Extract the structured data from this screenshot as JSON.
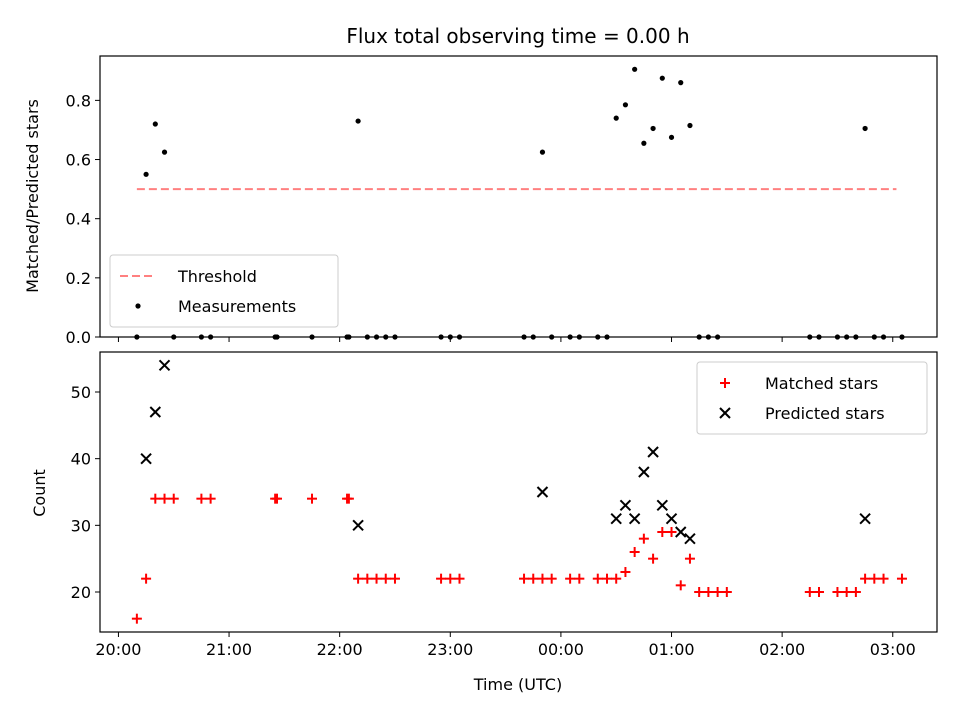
{
  "chart_data": [
    {
      "type": "scatter",
      "title": "Flux total observing time = 0.00 h",
      "ylabel": "Matched/Predicted stars",
      "xlabel": "",
      "ylim": [
        0,
        0.95
      ],
      "xlim": [
        "19:50",
        "03:24"
      ],
      "xticks": [
        "20:00",
        "21:00",
        "22:00",
        "23:00",
        "00:00",
        "01:00",
        "02:00",
        "03:00"
      ],
      "yticks": [
        "0.0",
        "0.2",
        "0.4",
        "0.6",
        "0.8"
      ],
      "legend": {
        "placement": "lower-left",
        "entries": [
          {
            "label": "Threshold",
            "color": "#ff8080",
            "marker": "dashed-line"
          },
          {
            "label": "Measurements",
            "color": "#000000",
            "marker": "dot"
          }
        ]
      },
      "threshold": {
        "value": 0.5,
        "x_start": "20:10",
        "x_end": "03:02"
      },
      "series": [
        {
          "name": "Measurements",
          "points": [
            [
              "20:10",
              0
            ],
            [
              "20:15",
              0.55
            ],
            [
              "20:20",
              0.72
            ],
            [
              "20:25",
              0.625
            ],
            [
              "20:30",
              0
            ],
            [
              "20:45",
              0
            ],
            [
              "20:50",
              0
            ],
            [
              "21:25",
              0
            ],
            [
              "21:26",
              0
            ],
            [
              "21:45",
              0
            ],
            [
              "22:04",
              0
            ],
            [
              "22:05",
              0
            ],
            [
              "22:10",
              0.73
            ],
            [
              "22:15",
              0
            ],
            [
              "22:20",
              0
            ],
            [
              "22:25",
              0
            ],
            [
              "22:30",
              0
            ],
            [
              "22:55",
              0
            ],
            [
              "23:00",
              0
            ],
            [
              "23:05",
              0
            ],
            [
              "23:40",
              0
            ],
            [
              "23:45",
              0
            ],
            [
              "23:50",
              0.625
            ],
            [
              "23:55",
              0
            ],
            [
              "00:05",
              0
            ],
            [
              "00:10",
              0
            ],
            [
              "00:20",
              0
            ],
            [
              "00:25",
              0
            ],
            [
              "00:30",
              0.74
            ],
            [
              "00:35",
              0.785
            ],
            [
              "00:40",
              0.905
            ],
            [
              "00:45",
              0.655
            ],
            [
              "00:50",
              0.705
            ],
            [
              "00:55",
              0.875
            ],
            [
              "01:00",
              0.675
            ],
            [
              "01:05",
              0.86
            ],
            [
              "01:10",
              0.715
            ],
            [
              "01:15",
              0
            ],
            [
              "01:20",
              0
            ],
            [
              "01:25",
              0
            ],
            [
              "02:15",
              0
            ],
            [
              "02:20",
              0
            ],
            [
              "02:30",
              0
            ],
            [
              "02:35",
              0
            ],
            [
              "02:40",
              0
            ],
            [
              "02:45",
              0.705
            ],
            [
              "02:50",
              0
            ],
            [
              "02:55",
              0
            ],
            [
              "03:05",
              0
            ]
          ]
        }
      ]
    },
    {
      "type": "scatter",
      "title": "",
      "ylabel": "Count",
      "xlabel": "Time (UTC)",
      "ylim": [
        14,
        56
      ],
      "xlim": [
        "19:50",
        "03:24"
      ],
      "xticks": [
        "20:00",
        "21:00",
        "22:00",
        "23:00",
        "00:00",
        "01:00",
        "02:00",
        "03:00"
      ],
      "yticks": [
        "20",
        "30",
        "40",
        "50"
      ],
      "legend": {
        "placement": "top-right",
        "entries": [
          {
            "label": "Matched stars",
            "color": "#ff0000",
            "marker": "plus"
          },
          {
            "label": "Predicted stars",
            "color": "#000000",
            "marker": "x"
          }
        ]
      },
      "series": [
        {
          "name": "Matched stars",
          "points": [
            [
              "20:10",
              16
            ],
            [
              "20:15",
              22
            ],
            [
              "20:20",
              34
            ],
            [
              "20:25",
              34
            ],
            [
              "20:30",
              34
            ],
            [
              "20:45",
              34
            ],
            [
              "20:50",
              34
            ],
            [
              "21:25",
              34
            ],
            [
              "21:26",
              34
            ],
            [
              "21:45",
              34
            ],
            [
              "22:04",
              34
            ],
            [
              "22:05",
              34
            ],
            [
              "22:10",
              22
            ],
            [
              "22:15",
              22
            ],
            [
              "22:20",
              22
            ],
            [
              "22:25",
              22
            ],
            [
              "22:30",
              22
            ],
            [
              "22:55",
              22
            ],
            [
              "23:00",
              22
            ],
            [
              "23:05",
              22
            ],
            [
              "23:40",
              22
            ],
            [
              "23:45",
              22
            ],
            [
              "23:50",
              22
            ],
            [
              "23:55",
              22
            ],
            [
              "00:05",
              22
            ],
            [
              "00:10",
              22
            ],
            [
              "00:20",
              22
            ],
            [
              "00:25",
              22
            ],
            [
              "00:30",
              22
            ],
            [
              "00:35",
              23
            ],
            [
              "00:40",
              26
            ],
            [
              "00:45",
              28
            ],
            [
              "00:50",
              25
            ],
            [
              "00:55",
              29
            ],
            [
              "01:00",
              29
            ],
            [
              "01:05",
              21
            ],
            [
              "01:10",
              25
            ],
            [
              "01:15",
              20
            ],
            [
              "01:20",
              20
            ],
            [
              "01:25",
              20
            ],
            [
              "01:30",
              20
            ],
            [
              "02:15",
              20
            ],
            [
              "02:20",
              20
            ],
            [
              "02:30",
              20
            ],
            [
              "02:35",
              20
            ],
            [
              "02:40",
              20
            ],
            [
              "02:45",
              22
            ],
            [
              "02:50",
              22
            ],
            [
              "02:55",
              22
            ],
            [
              "03:05",
              22
            ]
          ]
        },
        {
          "name": "Predicted stars",
          "points": [
            [
              "20:15",
              40
            ],
            [
              "20:20",
              47
            ],
            [
              "20:25",
              54
            ],
            [
              "22:10",
              30
            ],
            [
              "23:50",
              35
            ],
            [
              "00:30",
              31
            ],
            [
              "00:35",
              33
            ],
            [
              "00:40",
              31
            ],
            [
              "00:45",
              38
            ],
            [
              "00:50",
              41
            ],
            [
              "00:55",
              33
            ],
            [
              "01:00",
              31
            ],
            [
              "01:05",
              29
            ],
            [
              "01:10",
              28
            ],
            [
              "02:45",
              31
            ]
          ]
        }
      ]
    }
  ]
}
